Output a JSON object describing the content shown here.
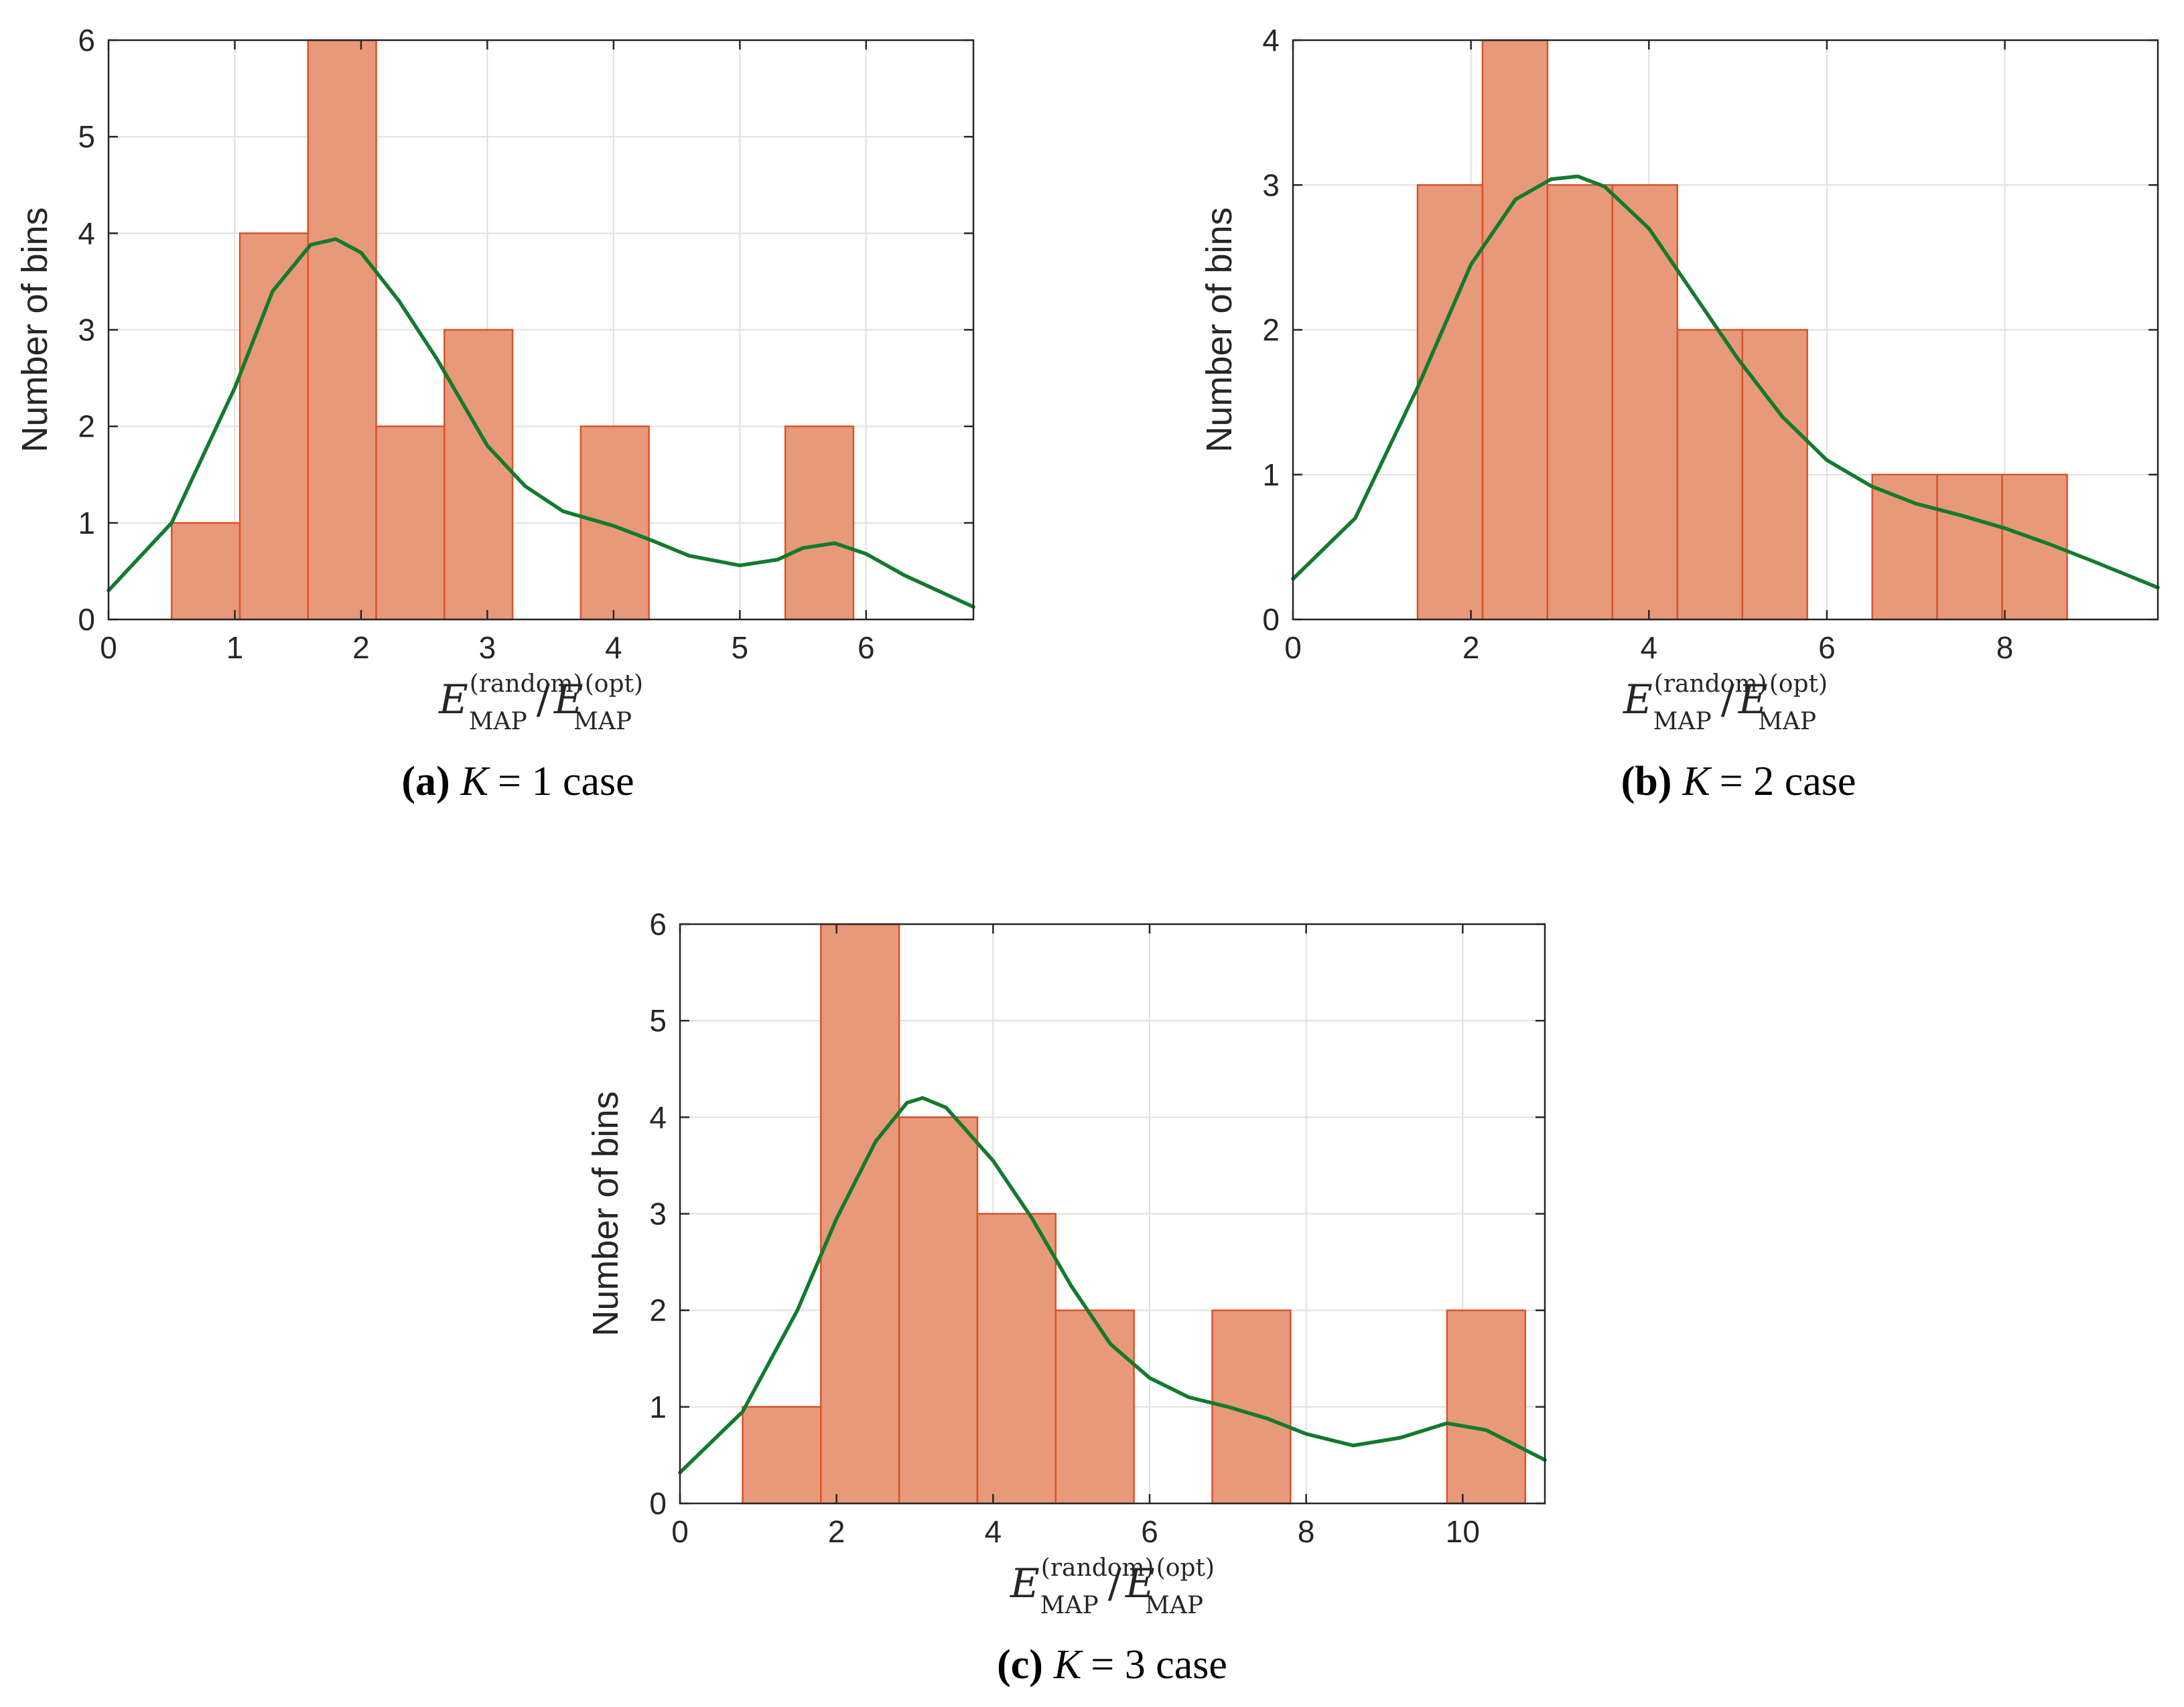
{
  "colors": {
    "bar_fill": "#E8997A",
    "bar_edge": "#D9532A",
    "curve": "#137A2E",
    "grid": "#E0E0E0",
    "axis": "#262626"
  },
  "chart_data": [
    {
      "id": "a",
      "type": "bar",
      "caption": {
        "label": "(a)",
        "var": "K",
        "rest": "= 1 case"
      },
      "ylabel": "Number of bins",
      "xlabel": {
        "base": "E",
        "sub": "MAP",
        "sup_num": "(random)",
        "slash": "/",
        "sup_den": "(opt)"
      },
      "xlim": [
        0,
        6.85
      ],
      "ylim": [
        0,
        6
      ],
      "xticks": [
        0,
        1,
        2,
        3,
        4,
        5,
        6
      ],
      "yticks": [
        0,
        1,
        2,
        3,
        4,
        5,
        6
      ],
      "bin_edges": [
        0.5,
        1.04,
        1.58,
        2.12,
        2.66,
        3.2,
        3.74,
        4.28,
        4.82,
        5.36,
        5.9
      ],
      "counts": [
        1,
        4,
        6,
        2,
        3,
        0,
        2,
        0,
        0,
        2
      ],
      "curve": {
        "x": [
          0,
          0.5,
          1.0,
          1.3,
          1.6,
          1.8,
          2.0,
          2.3,
          2.6,
          3.0,
          3.3,
          3.6,
          4.0,
          4.3,
          4.6,
          5.0,
          5.3,
          5.5,
          5.75,
          6.0,
          6.3,
          6.85
        ],
        "y": [
          0.3,
          1.0,
          2.4,
          3.4,
          3.88,
          3.94,
          3.8,
          3.3,
          2.7,
          1.8,
          1.38,
          1.12,
          0.97,
          0.82,
          0.66,
          0.56,
          0.62,
          0.74,
          0.79,
          0.68,
          0.46,
          0.13
        ]
      }
    },
    {
      "id": "b",
      "type": "bar",
      "caption": {
        "label": "(b)",
        "var": "K",
        "rest": "= 2 case"
      },
      "ylabel": "Number of bins",
      "xlabel": {
        "base": "E",
        "sub": "MAP",
        "sup_num": "(random)",
        "slash": "/",
        "sup_den": "(opt)"
      },
      "xlim": [
        0,
        9.72
      ],
      "ylim": [
        0,
        4
      ],
      "xticks": [
        0,
        2,
        4,
        6,
        8
      ],
      "yticks": [
        0,
        1,
        2,
        3,
        4
      ],
      "bin_edges": [
        1.4,
        2.13,
        2.86,
        3.59,
        4.32,
        5.05,
        5.78,
        6.51,
        7.24,
        7.97,
        8.7
      ],
      "counts": [
        3,
        4,
        3,
        3,
        2,
        2,
        0,
        1,
        1,
        1
      ],
      "curve": {
        "x": [
          0,
          0.7,
          1.4,
          2.0,
          2.5,
          2.9,
          3.2,
          3.5,
          4.0,
          4.5,
          5.0,
          5.5,
          6.0,
          6.5,
          7.0,
          7.5,
          8.0,
          8.5,
          9.0,
          9.72
        ],
        "y": [
          0.28,
          0.7,
          1.6,
          2.45,
          2.9,
          3.04,
          3.06,
          2.99,
          2.7,
          2.25,
          1.8,
          1.4,
          1.1,
          0.92,
          0.8,
          0.72,
          0.63,
          0.52,
          0.4,
          0.22
        ]
      }
    },
    {
      "id": "c",
      "type": "bar",
      "caption": {
        "label": "(c)",
        "var": "K",
        "rest": "= 3 case"
      },
      "ylabel": "Number of bins",
      "xlabel": {
        "base": "E",
        "sub": "MAP",
        "sup_num": "(random)",
        "slash": "/",
        "sup_den": "(opt)"
      },
      "xlim": [
        0,
        11.05
      ],
      "ylim": [
        0,
        6
      ],
      "xticks": [
        0,
        2,
        4,
        6,
        8,
        10
      ],
      "yticks": [
        0,
        1,
        2,
        3,
        4,
        5,
        6
      ],
      "bin_edges": [
        0.8,
        1.8,
        2.8,
        3.8,
        4.8,
        5.8,
        6.8,
        7.8,
        8.8,
        9.8,
        10.8
      ],
      "counts": [
        1,
        6,
        4,
        3,
        2,
        0,
        2,
        0,
        0,
        2
      ],
      "curve": {
        "x": [
          0,
          0.8,
          1.5,
          2.0,
          2.5,
          2.9,
          3.1,
          3.4,
          4.0,
          4.5,
          5.0,
          5.5,
          6.0,
          6.5,
          7.0,
          7.5,
          8.0,
          8.6,
          9.2,
          9.8,
          10.3,
          11.05
        ],
        "y": [
          0.32,
          0.95,
          2.0,
          2.95,
          3.75,
          4.15,
          4.2,
          4.1,
          3.55,
          2.95,
          2.25,
          1.65,
          1.3,
          1.1,
          1.0,
          0.88,
          0.72,
          0.6,
          0.68,
          0.83,
          0.76,
          0.45
        ]
      }
    }
  ]
}
